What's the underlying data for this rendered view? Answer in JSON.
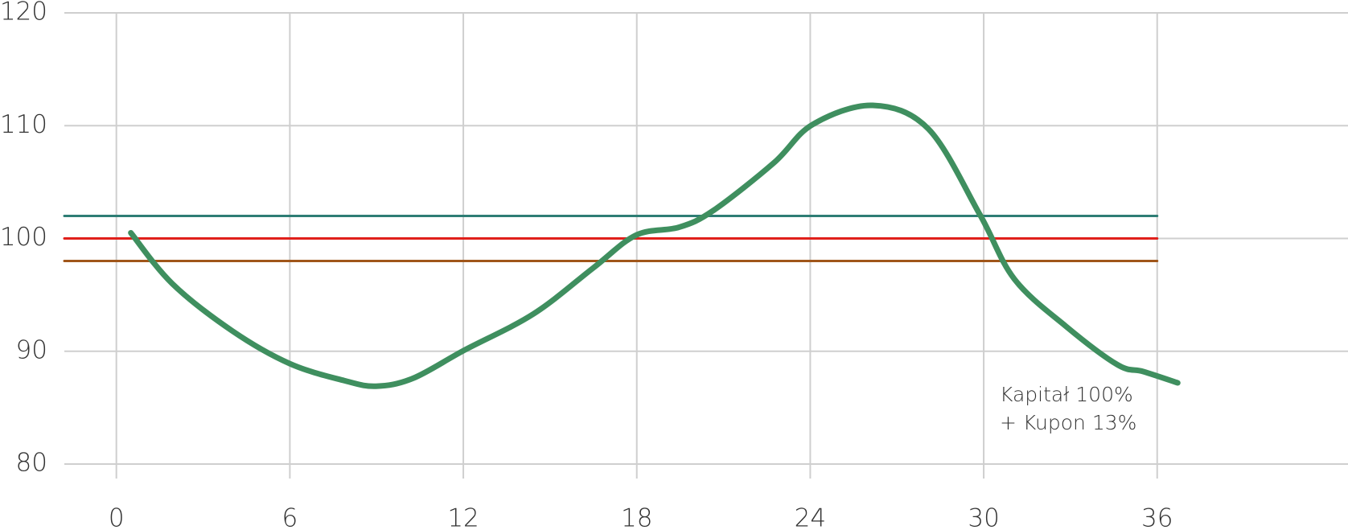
{
  "chart_data": {
    "type": "line",
    "xlim": [
      -1.8,
      42.6
    ],
    "xticks": [
      0,
      6,
      12,
      18,
      24,
      30,
      36
    ],
    "ylim": [
      80,
      120
    ],
    "yticks": [
      80,
      90,
      100,
      110,
      120
    ],
    "grid": true,
    "series": [
      {
        "color": "#2e7d74",
        "x": [
          -1.8,
          36
        ],
        "values": [
          102,
          102
        ]
      },
      {
        "color": "#e0201b",
        "x": [
          -1.8,
          36
        ],
        "values": [
          100,
          100
        ]
      },
      {
        "color": "#a0561a",
        "x": [
          -1.8,
          36
        ],
        "values": [
          98,
          98
        ]
      },
      {
        "color": "#3f8f5f",
        "x": [
          0.5,
          1.93,
          4.01,
          6.0,
          7.88,
          8.98,
          10.26,
          12.04,
          14.42,
          16.5,
          17.98,
          19.47,
          20.66,
          22.74,
          24.08,
          26.16,
          28.09,
          29.87,
          31.06,
          32.85,
          34.63,
          35.52,
          36.71
        ],
        "values": [
          100.5,
          96.0,
          91.8,
          88.9,
          87.4,
          86.9,
          87.6,
          90.1,
          93.3,
          97.4,
          100.3,
          101.0,
          102.5,
          106.7,
          110.1,
          111.8,
          109.7,
          102.1,
          96.4,
          92.2,
          88.8,
          88.2,
          87.2
        ]
      }
    ],
    "annotation": [
      "Kapitał 100%",
      "+ Kupon 13%"
    ]
  }
}
